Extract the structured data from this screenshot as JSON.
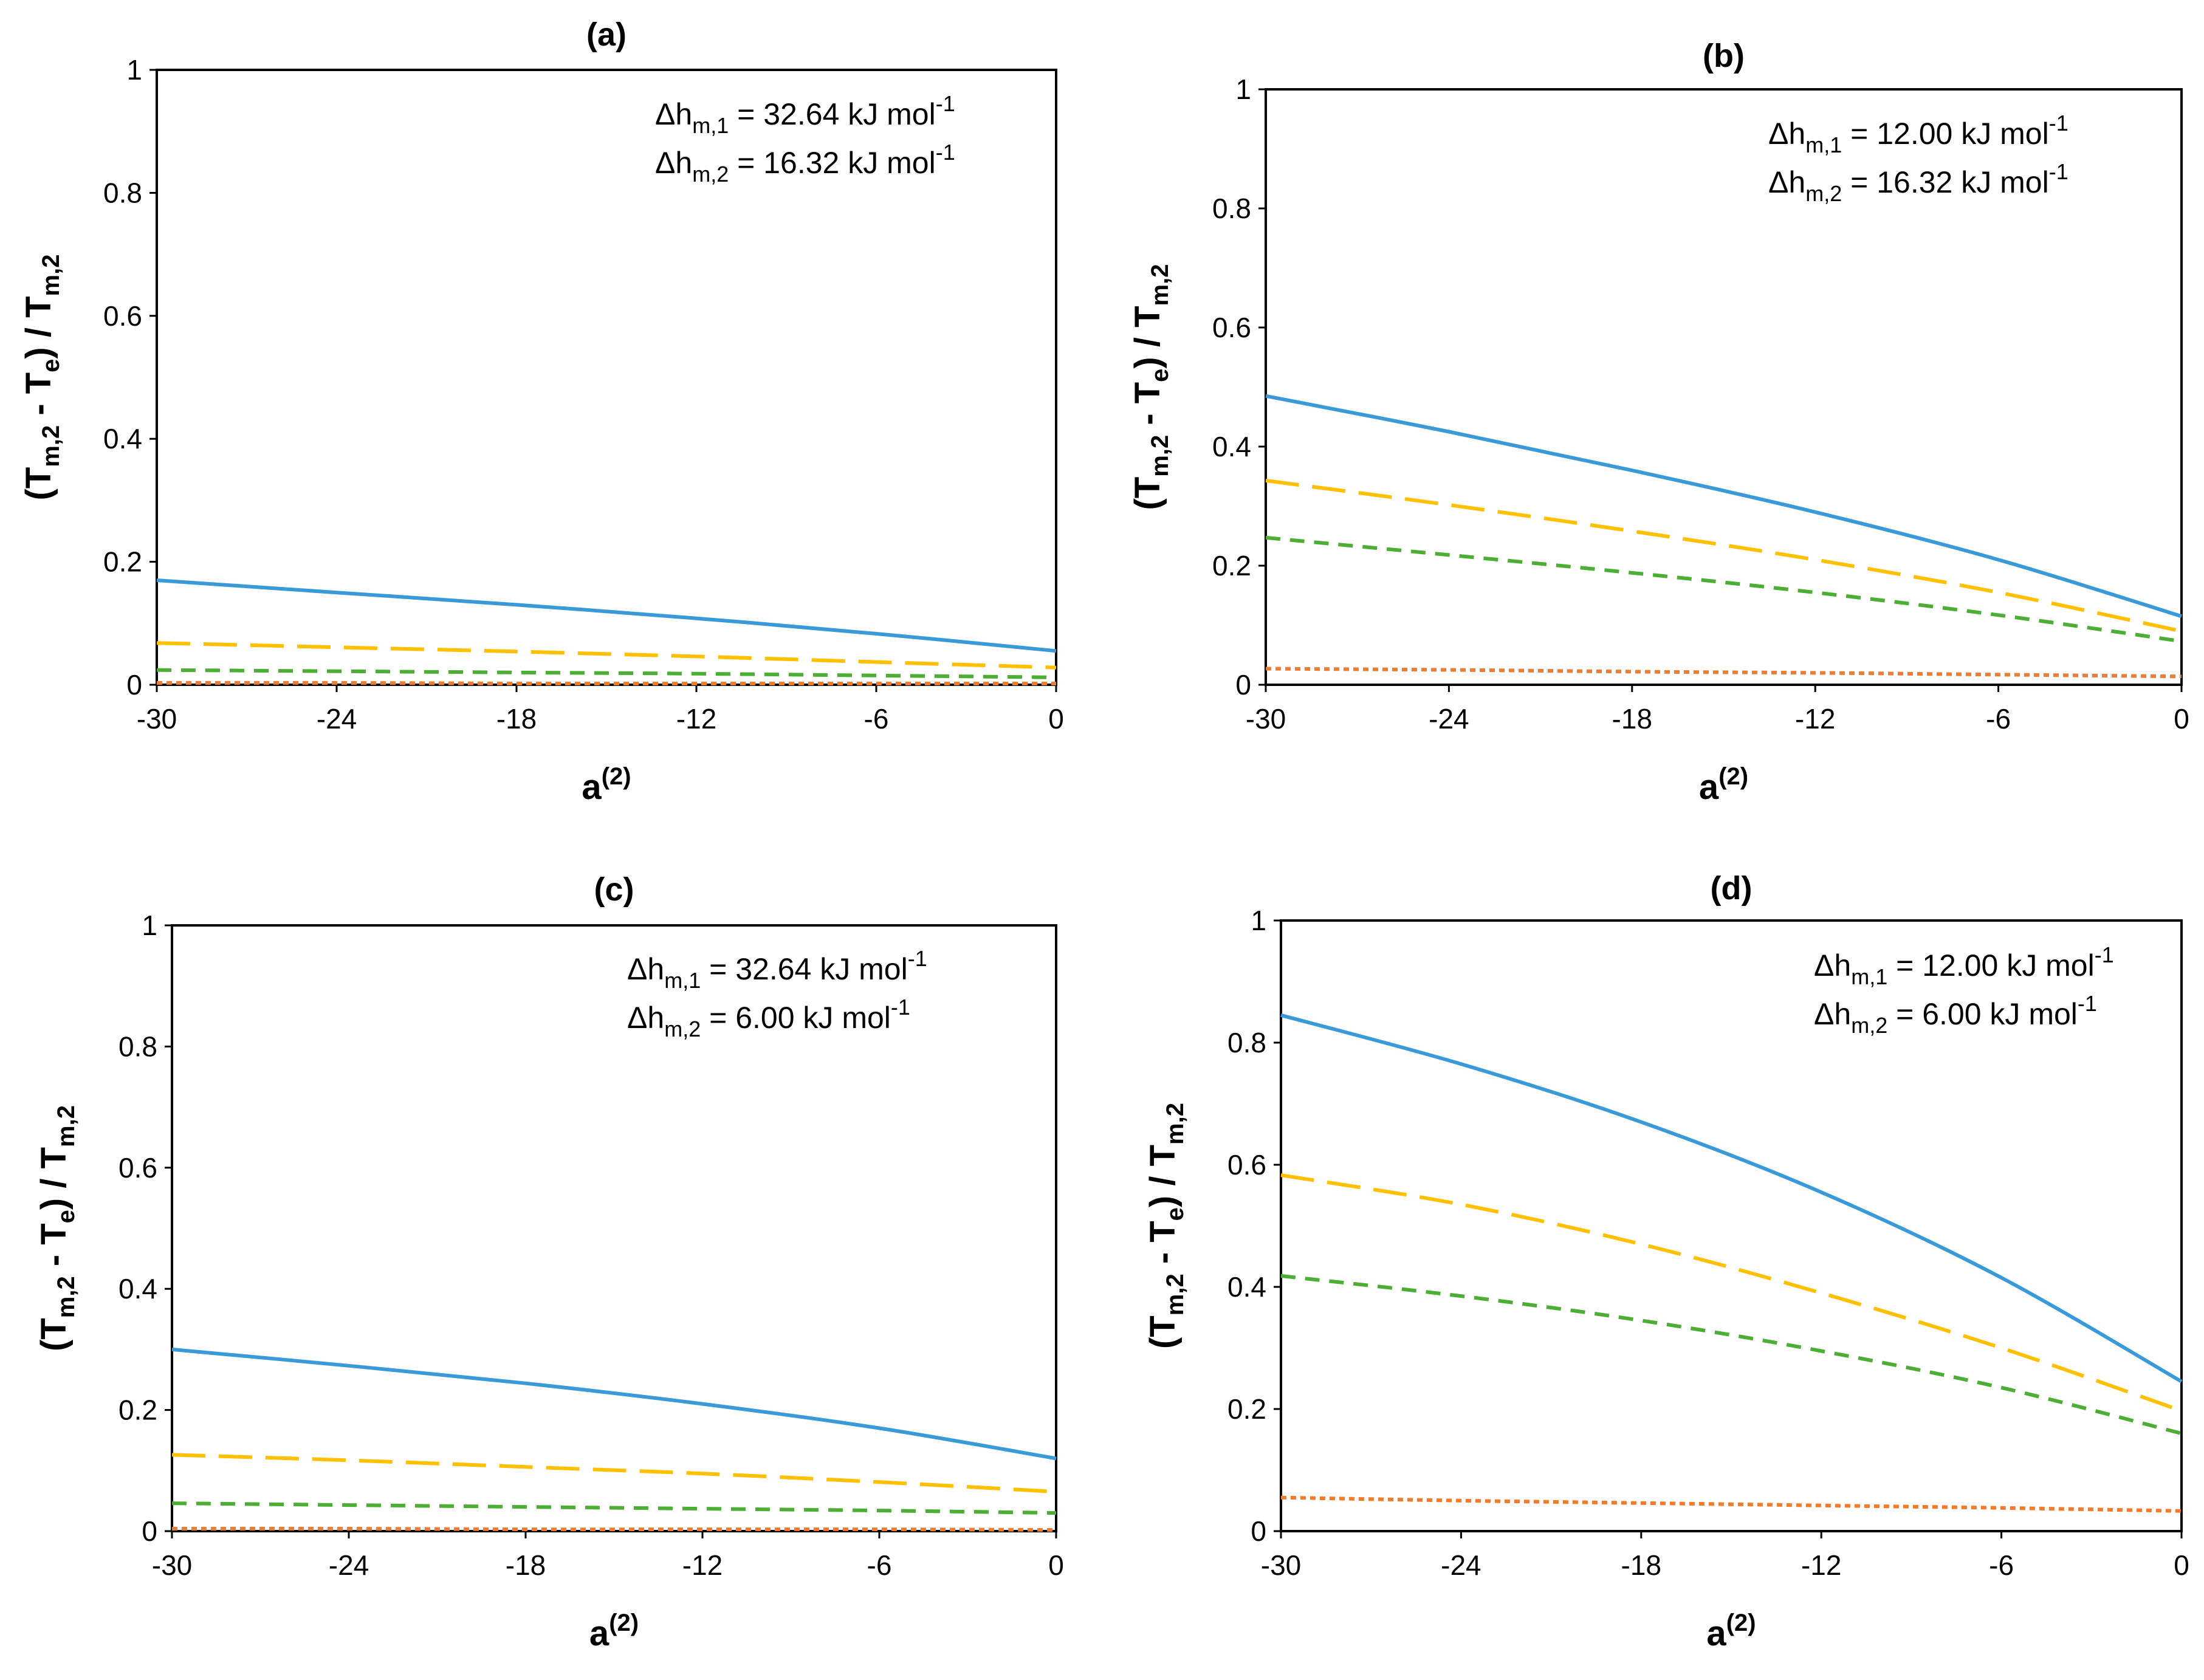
{
  "figure": {
    "panels": [
      {
        "label": "(a)",
        "annotation_lines": [
          {
            "prefix": "Δh",
            "sub": "m,1",
            "mid": " = 32.64 kJ mol",
            "sup": "-1"
          },
          {
            "prefix": "Δh",
            "sub": "m,2",
            "mid": " = 16.32 kJ mol",
            "sup": "-1"
          }
        ]
      },
      {
        "label": "(b)",
        "annotation_lines": [
          {
            "prefix": "Δh",
            "sub": "m,1",
            "mid": " = 12.00 kJ mol",
            "sup": "-1"
          },
          {
            "prefix": "Δh",
            "sub": "m,2",
            "mid": " = 16.32 kJ mol",
            "sup": "-1"
          }
        ]
      },
      {
        "label": "(c)",
        "annotation_lines": [
          {
            "prefix": "Δh",
            "sub": "m,1",
            "mid": " = 32.64 kJ mol",
            "sup": "-1"
          },
          {
            "prefix": "Δh",
            "sub": "m,2",
            "mid": " = 6.00 kJ mol",
            "sup": "-1"
          }
        ]
      },
      {
        "label": "(d)",
        "annotation_lines": [
          {
            "prefix": "Δh",
            "sub": "m,1",
            "mid": " = 12.00 kJ mol",
            "sup": "-1"
          },
          {
            "prefix": "Δh",
            "sub": "m,2",
            "mid": " = 6.00 kJ mol",
            "sup": "-1"
          }
        ]
      }
    ]
  },
  "chart_data": [
    {
      "type": "line",
      "title": "(a)",
      "xlabel": "a(2)",
      "ylabel": "(Tm,2 - Te) / Tm,2",
      "xlim": [
        -30,
        0
      ],
      "ylim": [
        0,
        1
      ],
      "xticks": [
        "-30",
        "-24",
        "-18",
        "-12",
        "-6",
        "0"
      ],
      "yticks": [
        "0",
        "0.2",
        "0.4",
        "0.6",
        "0.8",
        "1"
      ],
      "grid": false,
      "x": [
        -30,
        -24,
        -18,
        -12,
        -6,
        0
      ],
      "series": [
        {
          "color": "#3a9ad9",
          "style": "solid",
          "values": [
            0.17,
            0.15,
            0.13,
            0.108,
            0.083,
            0.055
          ]
        },
        {
          "color": "#ffc000",
          "style": "long-dash",
          "values": [
            0.068,
            0.061,
            0.054,
            0.046,
            0.037,
            0.028
          ]
        },
        {
          "color": "#4cae35",
          "style": "short-dash",
          "values": [
            0.024,
            0.022,
            0.02,
            0.018,
            0.015,
            0.012
          ]
        },
        {
          "color": "#ee7d31",
          "style": "dot",
          "values": [
            0.003,
            0.003,
            0.002,
            0.002,
            0.002,
            0.002
          ]
        }
      ]
    },
    {
      "type": "line",
      "title": "(b)",
      "xlabel": "a(2)",
      "ylabel": "(Tm,2 - Te) / Tm,2",
      "xlim": [
        -30,
        0
      ],
      "ylim": [
        0,
        1
      ],
      "xticks": [
        "-30",
        "-24",
        "-18",
        "-12",
        "-6",
        "0"
      ],
      "yticks": [
        "0",
        "0.2",
        "0.4",
        "0.6",
        "0.8",
        "1"
      ],
      "grid": false,
      "x": [
        -30,
        -24,
        -18,
        -12,
        -6,
        0
      ],
      "series": [
        {
          "color": "#3a9ad9",
          "style": "solid",
          "values": [
            0.485,
            0.425,
            0.36,
            0.29,
            0.21,
            0.115
          ]
        },
        {
          "color": "#ffc000",
          "style": "long-dash",
          "values": [
            0.343,
            0.302,
            0.258,
            0.21,
            0.155,
            0.09
          ]
        },
        {
          "color": "#4cae35",
          "style": "short-dash",
          "values": [
            0.247,
            0.218,
            0.188,
            0.155,
            0.117,
            0.073
          ]
        },
        {
          "color": "#ee7d31",
          "style": "dot",
          "values": [
            0.027,
            0.025,
            0.022,
            0.02,
            0.017,
            0.014
          ]
        }
      ]
    },
    {
      "type": "line",
      "title": "(c)",
      "xlabel": "a(2)",
      "ylabel": "(Tm,2 - Te) / Tm,2",
      "xlim": [
        -30,
        0
      ],
      "ylim": [
        0,
        1
      ],
      "xticks": [
        "-30",
        "-24",
        "-18",
        "-12",
        "-6",
        "0"
      ],
      "yticks": [
        "0",
        "0.2",
        "0.4",
        "0.6",
        "0.8",
        "1"
      ],
      "grid": false,
      "x": [
        -30,
        -24,
        -18,
        -12,
        -6,
        0
      ],
      "series": [
        {
          "color": "#3a9ad9",
          "style": "solid",
          "values": [
            0.3,
            0.273,
            0.244,
            0.21,
            0.17,
            0.12
          ]
        },
        {
          "color": "#ffc000",
          "style": "long-dash",
          "values": [
            0.126,
            0.117,
            0.106,
            0.095,
            0.081,
            0.065
          ]
        },
        {
          "color": "#4cae35",
          "style": "short-dash",
          "values": [
            0.046,
            0.043,
            0.04,
            0.037,
            0.034,
            0.03
          ]
        },
        {
          "color": "#ee7d31",
          "style": "dot",
          "values": [
            0.004,
            0.004,
            0.003,
            0.003,
            0.003,
            0.002
          ]
        }
      ]
    },
    {
      "type": "line",
      "title": "(d)",
      "xlabel": "a(2)",
      "ylabel": "(Tm,2 - Te) / Tm,2",
      "xlim": [
        -30,
        0
      ],
      "ylim": [
        0,
        1
      ],
      "xticks": [
        "-30",
        "-24",
        "-18",
        "-12",
        "-6",
        "0"
      ],
      "yticks": [
        "0",
        "0.2",
        "0.4",
        "0.6",
        "0.8",
        "1"
      ],
      "grid": false,
      "x": [
        -30,
        -24,
        -18,
        -12,
        -6,
        0
      ],
      "series": [
        {
          "color": "#3a9ad9",
          "style": "solid",
          "values": [
            0.845,
            0.765,
            0.67,
            0.555,
            0.415,
            0.245
          ]
        },
        {
          "color": "#ffc000",
          "style": "long-dash",
          "values": [
            0.583,
            0.535,
            0.47,
            0.39,
            0.3,
            0.197
          ]
        },
        {
          "color": "#4cae35",
          "style": "short-dash",
          "values": [
            0.418,
            0.385,
            0.345,
            0.295,
            0.235,
            0.16
          ]
        },
        {
          "color": "#ee7d31",
          "style": "dot",
          "values": [
            0.055,
            0.05,
            0.046,
            0.042,
            0.038,
            0.033
          ]
        }
      ]
    }
  ]
}
